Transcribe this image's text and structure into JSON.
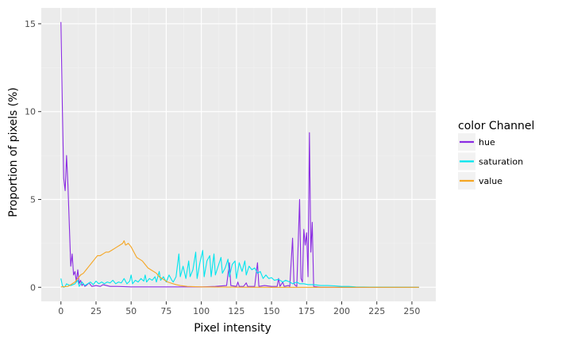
{
  "chart_data": {
    "type": "line",
    "xlabel": "Pixel intensity",
    "ylabel": "Proportion of pixels (%)",
    "xlim": [
      -14,
      267
    ],
    "ylim": [
      -0.8,
      15.9
    ],
    "x_ticks": [
      0,
      25,
      50,
      75,
      100,
      125,
      150,
      175,
      200,
      225,
      250
    ],
    "x_tick_labels": [
      "0",
      "25",
      "50",
      "75",
      "100",
      "125",
      "150",
      "175",
      "200",
      "225",
      "250"
    ],
    "y_ticks": [
      0,
      5,
      10,
      15
    ],
    "y_tick_labels": [
      "0",
      "5",
      "10",
      "15"
    ],
    "grid": true,
    "legend_title": "color Channel",
    "legend_position": "right",
    "colors": {
      "panel": "#ebebeb",
      "grid_major": "#ffffff",
      "grid_minor": "#f2f2f2"
    },
    "series": [
      {
        "name": "hue",
        "color": "#8a2be2",
        "points": [
          [
            0,
            15.1
          ],
          [
            1,
            10.3
          ],
          [
            2,
            6.2
          ],
          [
            3,
            5.5
          ],
          [
            4,
            7.5
          ],
          [
            5,
            5.8
          ],
          [
            6,
            3.5
          ],
          [
            7,
            1.2
          ],
          [
            8,
            1.9
          ],
          [
            9,
            0.7
          ],
          [
            10,
            0.9
          ],
          [
            11,
            0.3
          ],
          [
            12,
            1.0
          ],
          [
            13,
            0.2
          ],
          [
            14,
            0.4
          ],
          [
            15,
            0.1
          ],
          [
            16,
            0.2
          ],
          [
            17,
            0.05
          ],
          [
            18,
            0.1
          ],
          [
            20,
            0.25
          ],
          [
            22,
            0.05
          ],
          [
            25,
            0.1
          ],
          [
            28,
            0.05
          ],
          [
            30,
            0.15
          ],
          [
            35,
            0.05
          ],
          [
            40,
            0.05
          ],
          [
            50,
            0.02
          ],
          [
            60,
            0.02
          ],
          [
            70,
            0.02
          ],
          [
            80,
            0.02
          ],
          [
            90,
            0.02
          ],
          [
            100,
            0.02
          ],
          [
            110,
            0.05
          ],
          [
            118,
            0.1
          ],
          [
            120,
            1.4
          ],
          [
            121,
            0.1
          ],
          [
            125,
            0.05
          ],
          [
            126,
            0.3
          ],
          [
            127,
            0.05
          ],
          [
            130,
            0.05
          ],
          [
            132,
            0.25
          ],
          [
            133,
            0.05
          ],
          [
            138,
            0.05
          ],
          [
            140,
            1.4
          ],
          [
            141,
            0.05
          ],
          [
            145,
            0.1
          ],
          [
            150,
            0.05
          ],
          [
            154,
            0.05
          ],
          [
            155,
            0.5
          ],
          [
            156,
            0.05
          ],
          [
            158,
            0.3
          ],
          [
            159,
            0.05
          ],
          [
            162,
            0.1
          ],
          [
            163,
            0.05
          ],
          [
            165,
            2.8
          ],
          [
            166,
            0.2
          ],
          [
            167,
            0.1
          ],
          [
            168,
            0.05
          ],
          [
            170,
            5.0
          ],
          [
            171,
            0.5
          ],
          [
            172,
            0.3
          ],
          [
            173,
            3.3
          ],
          [
            174,
            2.4
          ],
          [
            175,
            3.1
          ],
          [
            176,
            0.6
          ],
          [
            177,
            8.8
          ],
          [
            178,
            2.0
          ],
          [
            179,
            3.7
          ],
          [
            180,
            0.05
          ],
          [
            185,
            0
          ],
          [
            200,
            0
          ],
          [
            255,
            0
          ]
        ]
      },
      {
        "name": "saturation",
        "color": "#00e5ee",
        "points": [
          [
            0,
            0.5
          ],
          [
            1,
            0.1
          ],
          [
            2,
            0.0
          ],
          [
            3,
            0.05
          ],
          [
            4,
            0.2
          ],
          [
            5,
            0.15
          ],
          [
            7,
            0.1
          ],
          [
            10,
            0.2
          ],
          [
            12,
            0.4
          ],
          [
            13,
            0.05
          ],
          [
            15,
            0.3
          ],
          [
            17,
            0.1
          ],
          [
            19,
            0.2
          ],
          [
            21,
            0.3
          ],
          [
            23,
            0.15
          ],
          [
            25,
            0.35
          ],
          [
            27,
            0.2
          ],
          [
            29,
            0.3
          ],
          [
            31,
            0.2
          ],
          [
            33,
            0.3
          ],
          [
            35,
            0.25
          ],
          [
            37,
            0.4
          ],
          [
            39,
            0.2
          ],
          [
            41,
            0.3
          ],
          [
            43,
            0.25
          ],
          [
            45,
            0.5
          ],
          [
            47,
            0.2
          ],
          [
            49,
            0.35
          ],
          [
            50,
            0.7
          ],
          [
            51,
            0.2
          ],
          [
            53,
            0.4
          ],
          [
            55,
            0.3
          ],
          [
            57,
            0.5
          ],
          [
            59,
            0.35
          ],
          [
            60,
            0.7
          ],
          [
            61,
            0.3
          ],
          [
            63,
            0.5
          ],
          [
            65,
            0.4
          ],
          [
            67,
            0.6
          ],
          [
            68,
            0.3
          ],
          [
            70,
            0.9
          ],
          [
            71,
            0.4
          ],
          [
            73,
            0.6
          ],
          [
            75,
            0.3
          ],
          [
            77,
            0.7
          ],
          [
            79,
            0.4
          ],
          [
            80,
            0.3
          ],
          [
            82,
            0.6
          ],
          [
            84,
            1.9
          ],
          [
            85,
            0.6
          ],
          [
            87,
            1.2
          ],
          [
            89,
            0.5
          ],
          [
            91,
            1.5
          ],
          [
            92,
            0.6
          ],
          [
            94,
            1.0
          ],
          [
            96,
            2.0
          ],
          [
            97,
            0.5
          ],
          [
            99,
            1.4
          ],
          [
            101,
            2.1
          ],
          [
            102,
            0.6
          ],
          [
            104,
            1.5
          ],
          [
            106,
            1.8
          ],
          [
            107,
            0.6
          ],
          [
            109,
            1.9
          ],
          [
            110,
            0.7
          ],
          [
            112,
            1.2
          ],
          [
            114,
            1.7
          ],
          [
            115,
            0.8
          ],
          [
            117,
            1.1
          ],
          [
            119,
            1.6
          ],
          [
            120,
            0.6
          ],
          [
            122,
            1.3
          ],
          [
            124,
            1.5
          ],
          [
            125,
            0.5
          ],
          [
            127,
            1.4
          ],
          [
            129,
            0.9
          ],
          [
            131,
            1.5
          ],
          [
            132,
            0.7
          ],
          [
            134,
            1.2
          ],
          [
            136,
            1.0
          ],
          [
            138,
            1.1
          ],
          [
            140,
            0.8
          ],
          [
            142,
            0.9
          ],
          [
            144,
            0.5
          ],
          [
            146,
            0.7
          ],
          [
            148,
            0.5
          ],
          [
            150,
            0.55
          ],
          [
            152,
            0.4
          ],
          [
            155,
            0.45
          ],
          [
            158,
            0.3
          ],
          [
            160,
            0.4
          ],
          [
            163,
            0.3
          ],
          [
            165,
            0.2
          ],
          [
            168,
            0.3
          ],
          [
            170,
            0.2
          ],
          [
            173,
            0.2
          ],
          [
            176,
            0.15
          ],
          [
            180,
            0.15
          ],
          [
            185,
            0.1
          ],
          [
            190,
            0.1
          ],
          [
            195,
            0.08
          ],
          [
            200,
            0.05
          ],
          [
            205,
            0.05
          ],
          [
            210,
            0.02
          ],
          [
            220,
            0.01
          ],
          [
            255,
            0
          ]
        ]
      },
      {
        "name": "value",
        "color": "#f5a623",
        "points": [
          [
            0,
            0.02
          ],
          [
            5,
            0.05
          ],
          [
            10,
            0.3
          ],
          [
            12,
            0.5
          ],
          [
            14,
            0.7
          ],
          [
            16,
            0.8
          ],
          [
            18,
            1.0
          ],
          [
            20,
            1.2
          ],
          [
            22,
            1.4
          ],
          [
            24,
            1.6
          ],
          [
            26,
            1.8
          ],
          [
            28,
            1.8
          ],
          [
            30,
            1.9
          ],
          [
            32,
            2.0
          ],
          [
            34,
            2.0
          ],
          [
            36,
            2.1
          ],
          [
            38,
            2.2
          ],
          [
            40,
            2.3
          ],
          [
            42,
            2.4
          ],
          [
            44,
            2.5
          ],
          [
            45,
            2.65
          ],
          [
            46,
            2.4
          ],
          [
            48,
            2.5
          ],
          [
            50,
            2.3
          ],
          [
            52,
            2.0
          ],
          [
            54,
            1.7
          ],
          [
            56,
            1.6
          ],
          [
            58,
            1.5
          ],
          [
            60,
            1.3
          ],
          [
            62,
            1.1
          ],
          [
            64,
            1.0
          ],
          [
            66,
            0.9
          ],
          [
            68,
            0.8
          ],
          [
            70,
            0.6
          ],
          [
            72,
            0.5
          ],
          [
            74,
            0.4
          ],
          [
            76,
            0.3
          ],
          [
            78,
            0.25
          ],
          [
            80,
            0.2
          ],
          [
            82,
            0.15
          ],
          [
            85,
            0.1
          ],
          [
            90,
            0.05
          ],
          [
            100,
            0.02
          ],
          [
            120,
            0.01
          ],
          [
            150,
            0
          ],
          [
            255,
            0
          ]
        ]
      }
    ]
  }
}
